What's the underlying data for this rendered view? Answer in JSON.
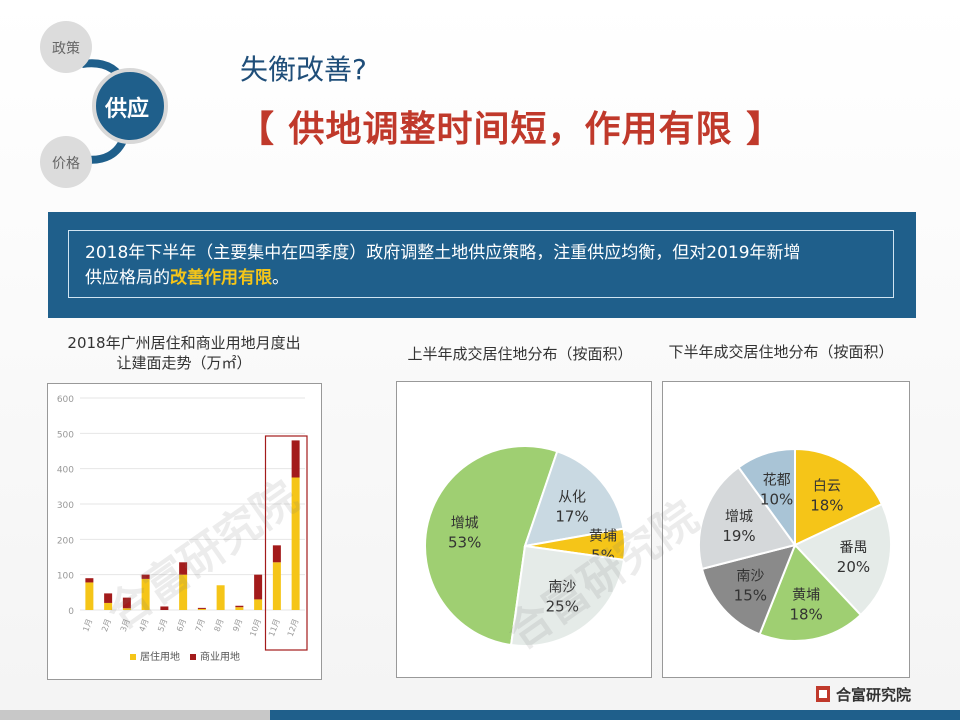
{
  "nav": {
    "top": "政策",
    "active": "供应",
    "bottom": "价格"
  },
  "subtitle": "失衡改善?",
  "headline": "【 供地调整时间短，作用有限 】",
  "banner": {
    "line1": "2018年下半年（主要集中在四季度）政府调整土地供应策略，注重供应均衡，但对2019年新增",
    "line2_prefix": "供应格局的",
    "line2_highlight": "改善作用有限",
    "line2_suffix": "。"
  },
  "chart1_title_line1": "2018年广州居住和商业用地月度出",
  "chart1_title_line2": "让建面走势（万㎡）",
  "chart2_title": "上半年成交居住地分布（按面积）",
  "chart3_title": "下半年成交居住地分布（按面积）",
  "watermark": "合富研究院",
  "brand": "合富研究院",
  "colors": {
    "residential": "#f5c518",
    "commercial": "#a31b1b",
    "accent_blue": "#1f5f8b",
    "headline_red": "#c0392b"
  },
  "chart_data": [
    {
      "type": "bar",
      "stacked": true,
      "categories": [
        "1月",
        "2月",
        "3月",
        "4月",
        "5月",
        "6月",
        "7月",
        "8月",
        "9月",
        "10月",
        "11月",
        "12月"
      ],
      "series": [
        {
          "name": "居住用地",
          "values": [
            78,
            20,
            5,
            88,
            0,
            100,
            3,
            70,
            8,
            30,
            135,
            375
          ]
        },
        {
          "name": "商业用地",
          "values": [
            12,
            27,
            30,
            12,
            10,
            35,
            3,
            0,
            4,
            70,
            48,
            105
          ]
        }
      ],
      "ylim": [
        0,
        600
      ],
      "yticks": [
        "0",
        "100",
        "200",
        "300",
        "400",
        "500",
        "600"
      ],
      "legend": "bottom",
      "highlight": [
        "11月",
        "12月"
      ]
    },
    {
      "type": "pie",
      "labels": [
        "增城",
        "从化",
        "黄埔",
        "南沙"
      ],
      "values": [
        53,
        17,
        5,
        25
      ],
      "value_labels": [
        "53%",
        "17%",
        "5%",
        "25%"
      ],
      "colors": [
        "#9fcf72",
        "#c9d9e2",
        "#f5c518",
        "#e5ebe8"
      ]
    },
    {
      "type": "pie",
      "labels": [
        "白云",
        "番禺",
        "黄埔",
        "南沙",
        "增城",
        "花都"
      ],
      "values": [
        18,
        20,
        18,
        15,
        19,
        10
      ],
      "value_labels": [
        "18%",
        "20%",
        "18%",
        "15%",
        "19%",
        "10%"
      ],
      "colors": [
        "#f5c518",
        "#e5ebe8",
        "#9fcf72",
        "#8a8a8a",
        "#d5d8da",
        "#a9c4d6"
      ]
    }
  ]
}
